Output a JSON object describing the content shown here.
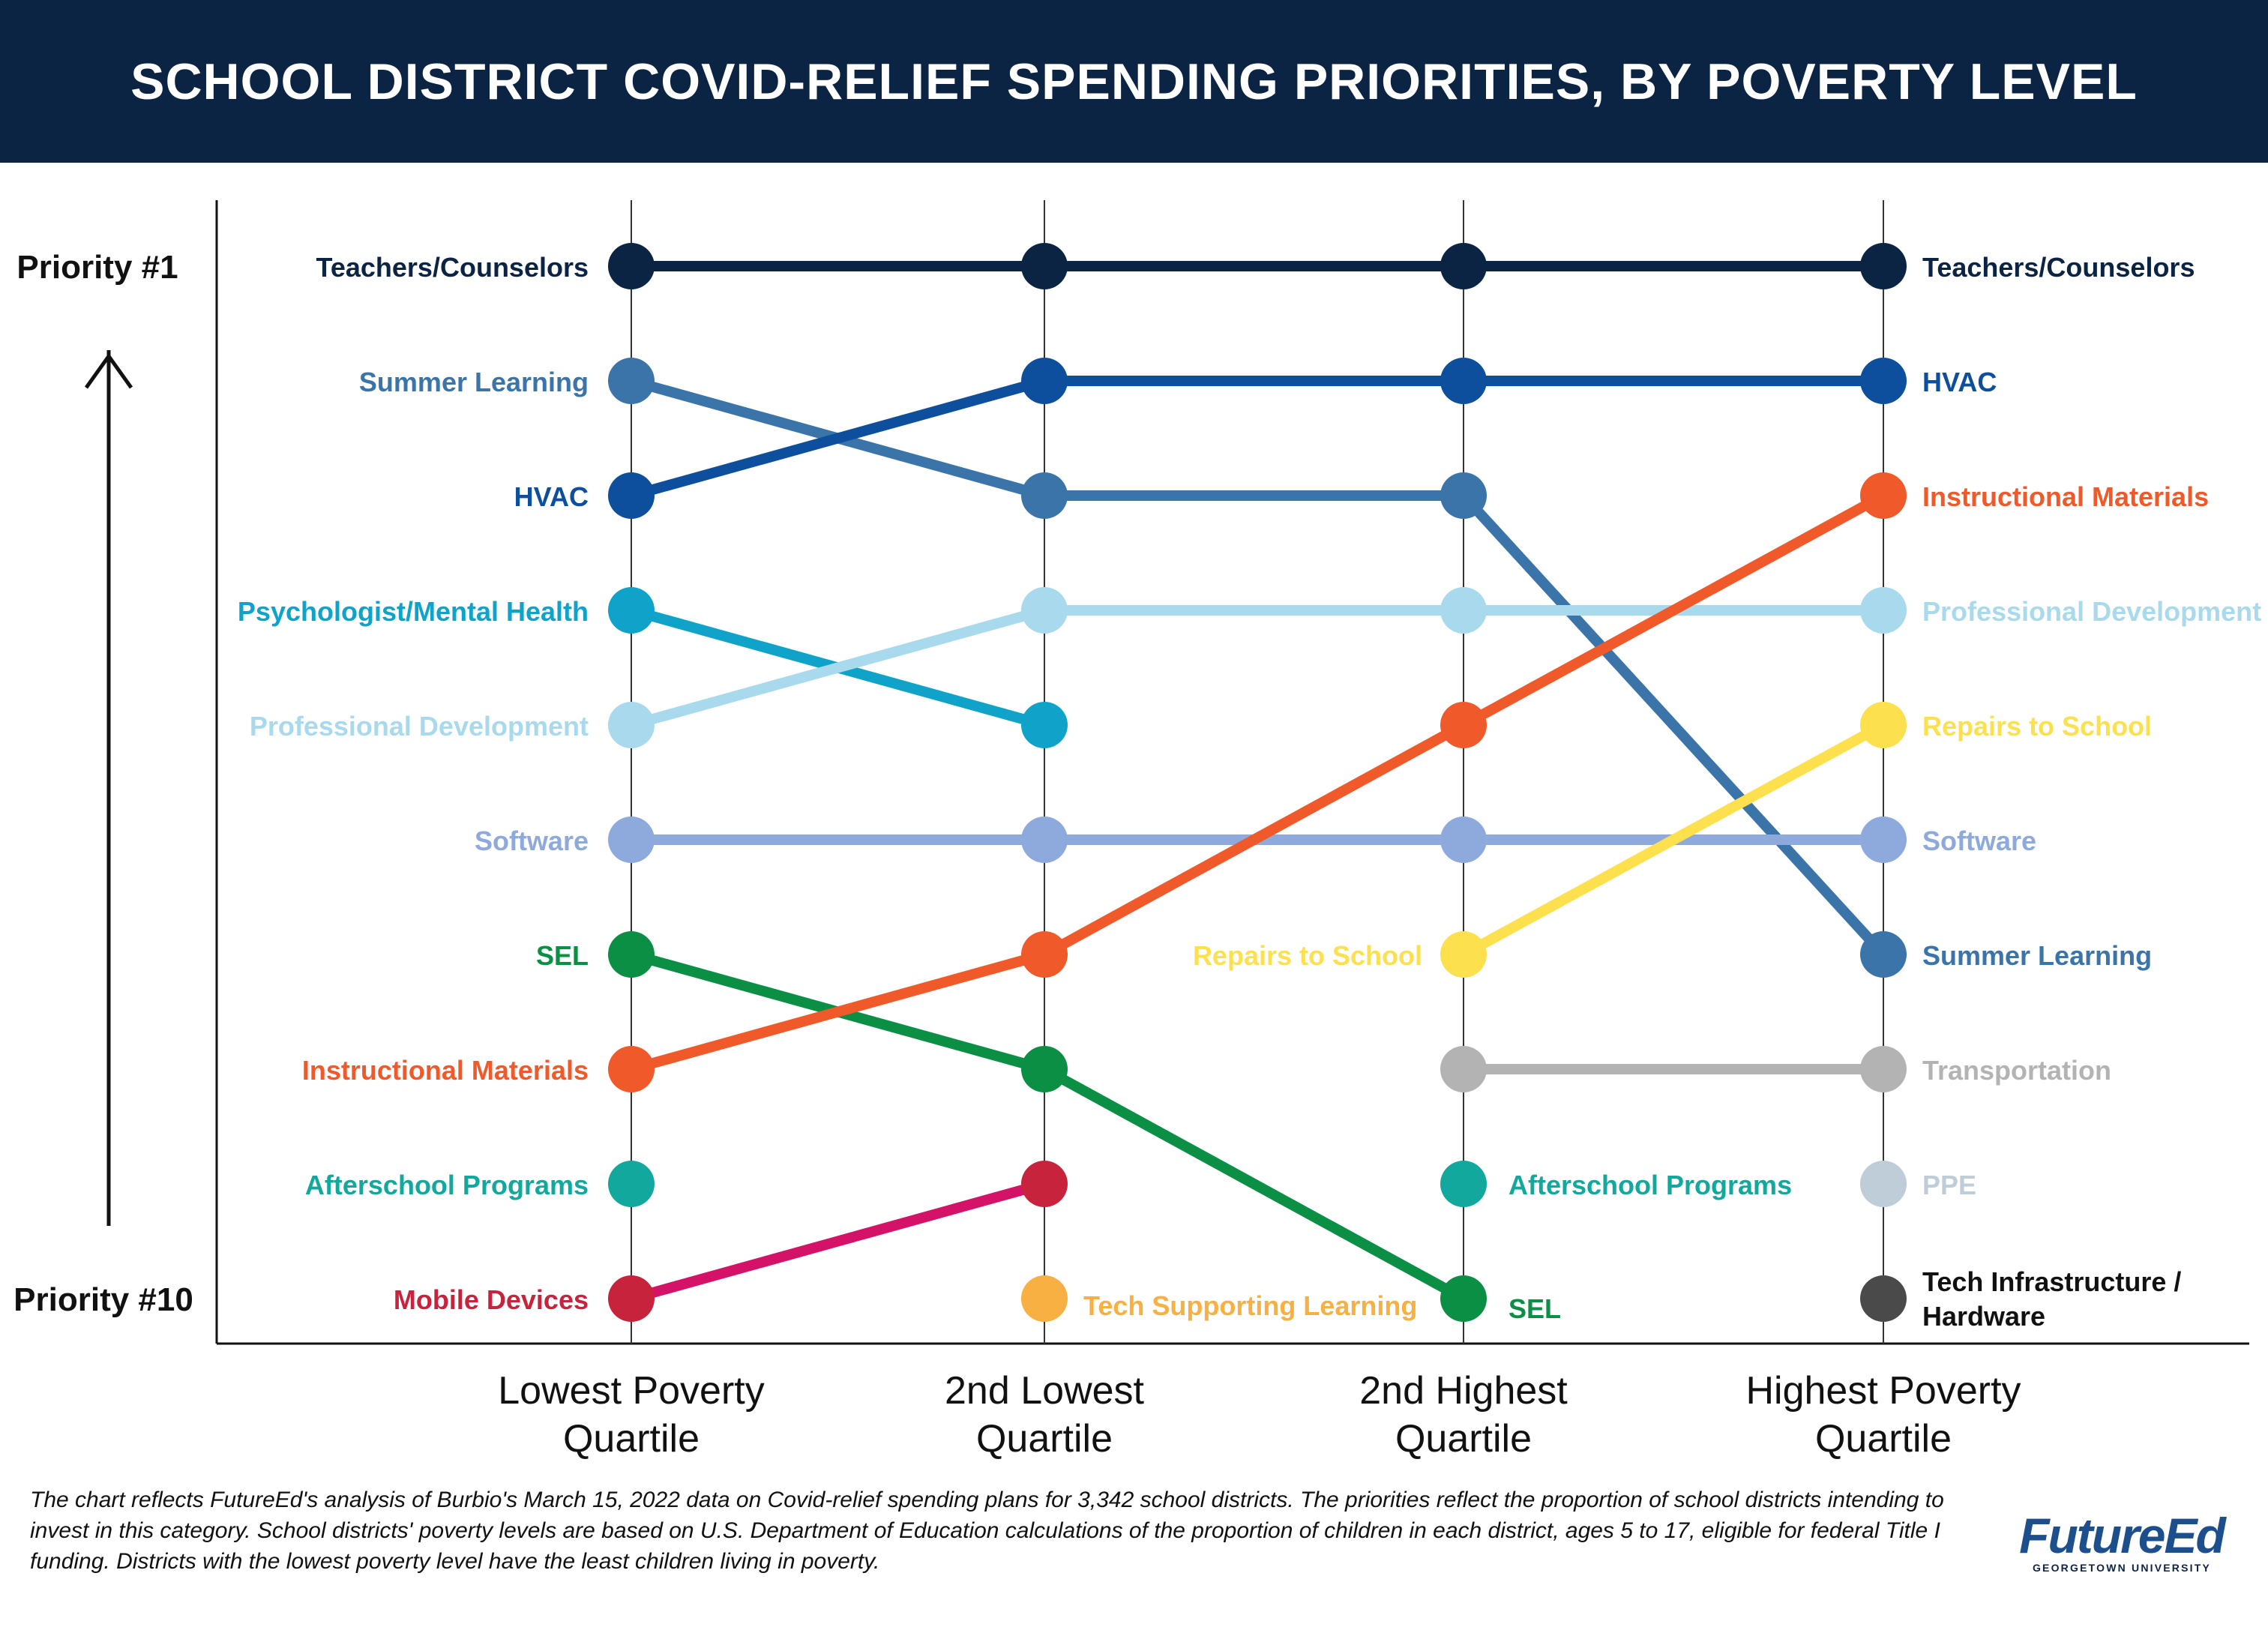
{
  "title": "SCHOOL DISTRICT COVID-RELIEF SPENDING PRIORITIES, BY POVERTY LEVEL",
  "footnote": "The chart reflects FutureEd's analysis of Burbio's March 15, 2022 data on Covid-relief spending plans for 3,342 school districts. The priorities reflect the proportion of school districts intending to invest in this category. School districts' poverty levels are based on U.S. Department of Education calculations of the proportion of children in each district, ages 5 to 17, eligible for federal Title I funding. Districts with the lowest poverty level have the least children living in poverty.",
  "logo": {
    "main": "FutureEd",
    "sub": "GEORGETOWN UNIVERSITY"
  },
  "chart_data": {
    "type": "line",
    "subtype": "bump",
    "categories": [
      "Lowest Poverty Quartile",
      "2nd Lowest Quartile",
      "2nd Highest Quartile",
      "Highest Poverty Quartile"
    ],
    "x_tick_lines": [
      [
        "Lowest Poverty",
        "Quartile"
      ],
      [
        "2nd Lowest",
        "Quartile"
      ],
      [
        "2nd Highest",
        "Quartile"
      ],
      [
        "Highest Poverty",
        "Quartile"
      ]
    ],
    "y_axis": {
      "top_label": "Priority #1",
      "bottom_label": "Priority #10",
      "range": [
        1,
        10
      ],
      "inverted": true
    },
    "series": [
      {
        "name": "Teachers/Counselors",
        "color": "#0c2444",
        "ranks": [
          1,
          1,
          1,
          1
        ]
      },
      {
        "name": "Summer Learning",
        "color": "#3b74a8",
        "ranks": [
          2,
          3,
          3,
          7
        ]
      },
      {
        "name": "HVAC",
        "color": "#0d4f9c",
        "ranks": [
          3,
          2,
          2,
          2
        ]
      },
      {
        "name": "Psychologist/Mental Health",
        "color": "#10a3c9",
        "ranks": [
          4,
          5,
          null,
          null
        ]
      },
      {
        "name": "Professional Development",
        "color": "#a8d9ec",
        "ranks": [
          5,
          4,
          4,
          4
        ]
      },
      {
        "name": "Software",
        "color": "#8eaadd",
        "ranks": [
          6,
          6,
          6,
          6
        ]
      },
      {
        "name": "SEL",
        "color": "#0a8f45",
        "ranks": [
          7,
          8,
          10,
          null
        ]
      },
      {
        "name": "Instructional Materials",
        "color": "#f05a2a",
        "ranks": [
          8,
          7,
          5,
          3
        ]
      },
      {
        "name": "Afterschool Programs",
        "color": "#12a89d",
        "ranks": [
          9,
          null,
          9,
          null
        ]
      },
      {
        "name": "Mobile Devices",
        "color": "#d41267",
        "point_colors": [
          "#c8233d",
          "#c8233d"
        ],
        "ranks": [
          10,
          9,
          null,
          null
        ]
      },
      {
        "name": "Tech Supporting Learning",
        "color": "#f8b043",
        "ranks": [
          null,
          10,
          null,
          null
        ]
      },
      {
        "name": "Repairs to School",
        "color": "#fce04e",
        "ranks": [
          null,
          null,
          7,
          5
        ]
      },
      {
        "name": "Transportation",
        "color": "#b3b3b3",
        "ranks": [
          null,
          null,
          8,
          8
        ]
      },
      {
        "name": "PPE",
        "color": "#bfcdd8",
        "ranks": [
          null,
          null,
          null,
          9
        ]
      },
      {
        "name": "Tech Infrastructure / Hardware",
        "color": "#4a4a4a",
        "ranks": [
          null,
          null,
          null,
          10
        ]
      }
    ],
    "point_labels": [
      {
        "text": "Teachers/Counselors",
        "color": "#0c2444",
        "col": 0,
        "rank": 1
      },
      {
        "text": "Summer Learning",
        "color": "#3b74a8",
        "col": 0,
        "rank": 2
      },
      {
        "text": "HVAC",
        "color": "#0d4f9c",
        "col": 0,
        "rank": 3
      },
      {
        "text": "Psychologist/Mental Health",
        "color": "#10a3c9",
        "col": 0,
        "rank": 4
      },
      {
        "text": "Professional Development",
        "color": "#a8d9ec",
        "col": 0,
        "rank": 5
      },
      {
        "text": "Software",
        "color": "#8eaadd",
        "col": 0,
        "rank": 6
      },
      {
        "text": "SEL",
        "color": "#0a8f45",
        "col": 0,
        "rank": 7
      },
      {
        "text": "Instructional Materials",
        "color": "#f05a2a",
        "col": 0,
        "rank": 8
      },
      {
        "text": "Afterschool Programs",
        "color": "#12a89d",
        "col": 0,
        "rank": 9
      },
      {
        "text": "Mobile Devices",
        "color": "#c8233d",
        "col": 0,
        "rank": 10
      },
      {
        "text": "Tech Supporting Learning",
        "color": "#f8b043",
        "col": 1,
        "rank": 10
      },
      {
        "text": "Repairs to School",
        "color": "#fce04e",
        "col": 2,
        "rank": 7
      },
      {
        "text": "Afterschool Programs",
        "color": "#12a89d",
        "col": 2,
        "rank": 9
      },
      {
        "text": "SEL",
        "color": "#0a8f45",
        "col": 2,
        "rank": 10
      },
      {
        "text": "Teachers/Counselors",
        "color": "#0c2444",
        "col": 3,
        "rank": 1
      },
      {
        "text": "HVAC",
        "color": "#0d4f9c",
        "col": 3,
        "rank": 2
      },
      {
        "text": "Instructional Materials",
        "color": "#f05a2a",
        "col": 3,
        "rank": 3
      },
      {
        "text": "Professional Development",
        "color": "#a8d9ec",
        "col": 3,
        "rank": 4
      },
      {
        "text": "Repairs to School",
        "color": "#fce04e",
        "col": 3,
        "rank": 5
      },
      {
        "text": "Software",
        "color": "#8eaadd",
        "col": 3,
        "rank": 6
      },
      {
        "text": "Summer Learning",
        "color": "#3b74a8",
        "col": 3,
        "rank": 7
      },
      {
        "text": "Transportation",
        "color": "#b3b3b3",
        "col": 3,
        "rank": 8
      },
      {
        "text": "PPE",
        "color": "#bfcdd8",
        "col": 3,
        "rank": 9
      },
      {
        "text": "Tech Infrastructure / Hardware",
        "color": "#111111",
        "col": 3,
        "rank": 10,
        "lines": [
          "Tech Infrastructure /",
          "Hardware"
        ]
      }
    ]
  }
}
